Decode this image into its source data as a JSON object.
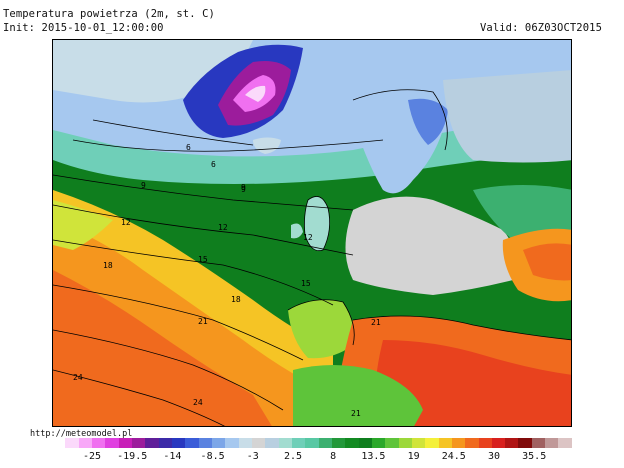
{
  "header": {
    "title": "Temperatura powietrza (2m, st. C)",
    "init": "Init: 2015-10-01_12:00:00",
    "valid": "Valid: 06Z03OCT2015"
  },
  "credit": "http://meteomodel.pl",
  "legend": {
    "colors": [
      "#ffffff",
      "#fbd9fb",
      "#f8a8f8",
      "#f070f0",
      "#e040e0",
      "#c81eb8",
      "#9c1c9c",
      "#5f1e99",
      "#3c2aa8",
      "#2838c0",
      "#3a5cd8",
      "#5a82e0",
      "#7ca6e8",
      "#a6c8ef",
      "#c8dde8",
      "#d4d4d4",
      "#b8cfe0",
      "#a2dcd0",
      "#6fcfb8",
      "#58c8a4",
      "#3cb070",
      "#23983a",
      "#138a22",
      "#0f7e1e",
      "#2aa82a",
      "#5ec43a",
      "#9cd83a",
      "#d0e43a",
      "#f4f03a",
      "#f5c425",
      "#f5961e",
      "#f06a1e",
      "#e8421e",
      "#d8201e",
      "#b01414",
      "#800a0a",
      "#a06060",
      "#c09898",
      "#dcc4c4"
    ],
    "ticks": [
      "-25",
      "-19.5",
      "-14",
      "-8.5",
      "-3",
      "2.5",
      "8",
      "13.5",
      "19",
      "24.5",
      "30",
      "35.5"
    ]
  },
  "map": {
    "contour_labels": [
      "9",
      "9",
      "12",
      "12",
      "12",
      "15",
      "15",
      "18",
      "18",
      "21",
      "21",
      "21",
      "24",
      "24",
      "6",
      "6",
      "9"
    ]
  }
}
